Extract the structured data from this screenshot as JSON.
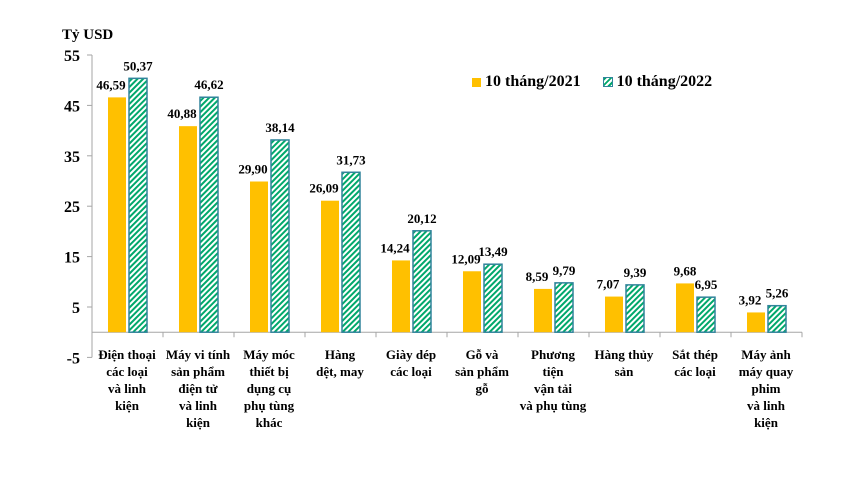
{
  "chart_data": {
    "type": "bar",
    "ylabel": "Tỷ USD",
    "ylim": [
      -5,
      55
    ],
    "yticks": [
      "55",
      "45",
      "35",
      "25",
      "15",
      "5",
      "-5"
    ],
    "ytick_values": [
      55,
      45,
      35,
      25,
      15,
      5,
      -5
    ],
    "grid": false,
    "legend_position": "top-right",
    "categories": [
      [
        "Điện thoại",
        "các loại",
        "và linh",
        "kiện"
      ],
      [
        "Máy vi tính",
        "sản phẩm",
        "điện tử",
        "và linh",
        "kiện"
      ],
      [
        "Máy móc",
        "thiết bị",
        "dụng cụ",
        "phụ tùng",
        "khác"
      ],
      [
        "Hàng",
        "dệt, may"
      ],
      [
        "Giày dép",
        "các loại"
      ],
      [
        "Gỗ và",
        "sản phẩm",
        "gỗ"
      ],
      [
        "Phương",
        "tiện",
        "vận tải",
        "và phụ tùng"
      ],
      [
        "Hàng thủy",
        "sản"
      ],
      [
        "Sắt thép",
        "các loại"
      ],
      [
        "Máy ảnh",
        "máy quay",
        "phim",
        "và linh",
        "kiện"
      ]
    ],
    "series": [
      {
        "name": "10 tháng/2021",
        "color": "#FFC000",
        "values": [
          46.59,
          40.88,
          29.9,
          26.09,
          14.24,
          12.09,
          8.59,
          7.07,
          9.68,
          3.92
        ],
        "labels": [
          "46,59",
          "40,88",
          "29,90",
          "26,09",
          "14,24",
          "12,09",
          "8,59",
          "7,07",
          "9,68",
          "3,92"
        ]
      },
      {
        "name": "10 tháng/2022",
        "color": "#00A86B",
        "border": "#31849B",
        "pattern": "diagonal-hatch",
        "values": [
          50.37,
          46.62,
          38.14,
          31.73,
          20.12,
          13.49,
          9.79,
          9.39,
          6.95,
          5.26
        ],
        "labels": [
          "50,37",
          "46,62",
          "38,14",
          "31,73",
          "20,12",
          "13,49",
          "9,79",
          "9,39",
          "6,95",
          "5,26"
        ]
      }
    ]
  }
}
